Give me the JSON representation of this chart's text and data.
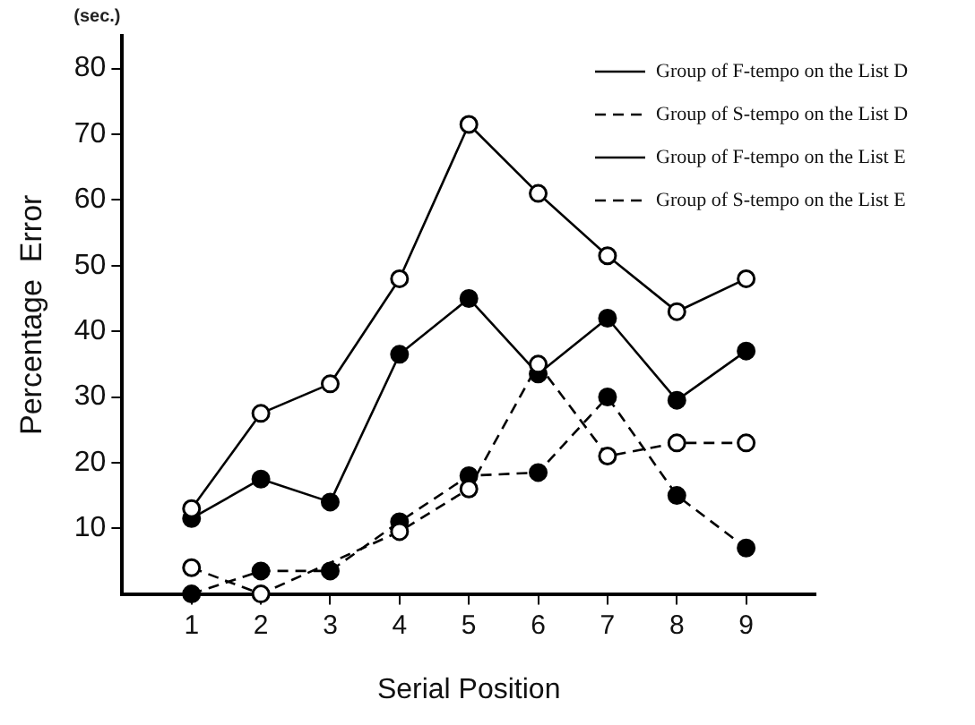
{
  "chart_data": {
    "type": "line",
    "xlabel": "Serial Position",
    "ylabel": "Percentage  Error",
    "annotations": [
      "(sec.)"
    ],
    "x": [
      1,
      2,
      3,
      4,
      5,
      6,
      7,
      8,
      9
    ],
    "xlim": [
      0,
      10
    ],
    "xticks": [
      1,
      2,
      3,
      4,
      5,
      6,
      7,
      8,
      9
    ],
    "ylim": [
      0,
      85
    ],
    "yticks": [
      10,
      20,
      30,
      40,
      50,
      60,
      70,
      80
    ],
    "grid": false,
    "legend": "top right",
    "series": [
      {
        "name": "Group of F-tempo on the List D",
        "color": "#000000",
        "line_style": "solid",
        "marker": "open-circle",
        "values": [
          13,
          27.5,
          32,
          48,
          71.5,
          61,
          51.5,
          43,
          48
        ]
      },
      {
        "name": "Group of S-tempo on the List D",
        "color": "#000000",
        "line_style": "dashed",
        "marker": "open-circle",
        "values": [
          4,
          0,
          null,
          9.5,
          16,
          35,
          21,
          23,
          23
        ]
      },
      {
        "name": "Group of F-tempo on the List E",
        "color": "#000000",
        "line_style": "solid",
        "marker": "circle",
        "values": [
          11.5,
          17.5,
          14,
          36.5,
          45,
          33.5,
          42,
          29.5,
          37
        ]
      },
      {
        "name": "Group of S-tempo on the List E",
        "color": "#000000",
        "line_style": "dashed",
        "marker": "circle",
        "values": [
          0,
          3.5,
          3.5,
          11,
          18,
          18.5,
          30,
          15,
          7
        ]
      }
    ]
  }
}
